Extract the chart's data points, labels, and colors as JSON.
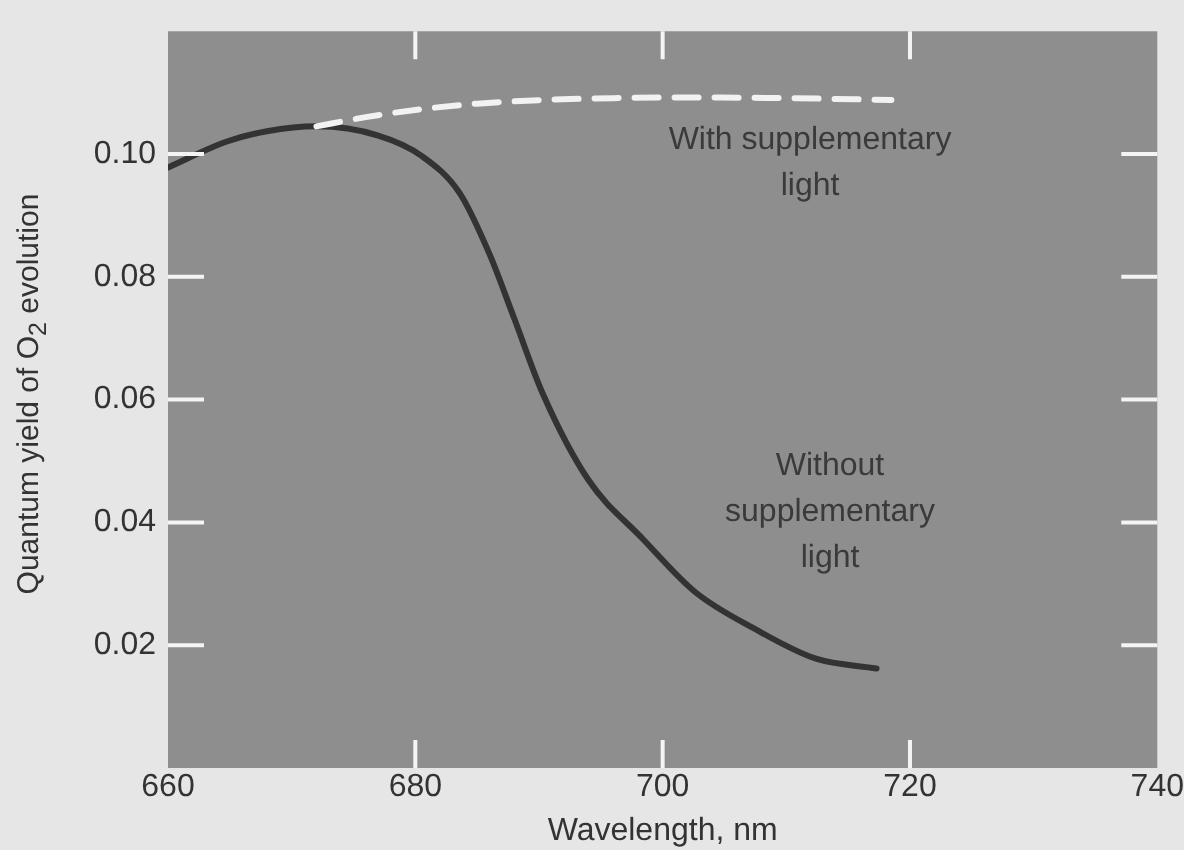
{
  "chart_data": {
    "type": "line",
    "xlabel": "Wavelength, nm",
    "ylabel": "Quantum yield of O$_{2}$ evolution",
    "xlim": [
      660,
      740
    ],
    "xticks": [
      660,
      680,
      700,
      720,
      740
    ],
    "ylim": [
      0,
      0.12
    ],
    "yticks": [
      0.02,
      0.04,
      0.06,
      0.08,
      {
        "value": 0.1,
        "label": "0.10"
      }
    ],
    "grid": false,
    "legend": false,
    "marker": "none",
    "series": [
      {
        "name": "With supplementary light",
        "color": "#f2f2f2",
        "line_style": "dashed",
        "x": [
          672,
          676,
          680.5,
          685,
          690.3,
          696,
          701.3,
          710,
          718.5
        ],
        "values": [
          0.1045,
          0.106,
          0.1073,
          0.1082,
          0.1088,
          0.1091,
          0.1092,
          0.1091,
          0.1088
        ]
      },
      {
        "name": "Without supplementary light",
        "color": "#333333",
        "line_style": "solid",
        "x": [
          660,
          664.7,
          668,
          672,
          677,
          680.5,
          683.6,
          686,
          688,
          690.3,
          694,
          698.4,
          702.6,
          707.5,
          712.4,
          717.3
        ],
        "values": [
          0.0978,
          0.102,
          0.1037,
          0.1045,
          0.103,
          0.0997,
          0.0936,
          0.0837,
          0.0732,
          0.061,
          0.0469,
          0.0373,
          0.0287,
          0.0226,
          0.0178,
          0.0162
        ]
      }
    ]
  }
}
